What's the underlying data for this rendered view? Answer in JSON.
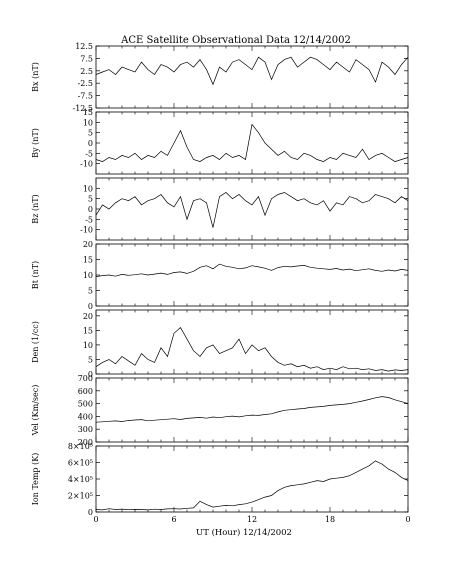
{
  "title": "ACE Satellite Observational Data   12/14/2002",
  "chart_data": [
    {
      "type": "line",
      "ylabel": "Bx (nT)",
      "ylim": [
        -12.5,
        12.5
      ],
      "yticks": [
        "12.5",
        "7.5",
        "2.5",
        "-2.5",
        "-7.5",
        "-12.5"
      ],
      "xlim": [
        0,
        24
      ],
      "series": [
        {
          "x": [
            0,
            0.5,
            1,
            1.5,
            2,
            2.5,
            3,
            3.5,
            4,
            4.5,
            5,
            5.5,
            6,
            6.5,
            7,
            7.5,
            8,
            8.5,
            9,
            9.5,
            10,
            10.5,
            11,
            11.5,
            12,
            12.5,
            13,
            13.5,
            14,
            14.5,
            15,
            15.5,
            16,
            16.5,
            17,
            17.5,
            18,
            18.5,
            19,
            19.5,
            20,
            20.5,
            21,
            21.5,
            22,
            22.5,
            23,
            23.5,
            24
          ],
          "values": [
            1,
            2,
            3,
            1,
            4,
            3,
            2,
            6,
            3,
            1,
            5,
            4,
            2,
            5,
            6,
            4,
            7,
            3,
            -3,
            4,
            2,
            6,
            7,
            5,
            3,
            8,
            6,
            -1,
            5,
            7,
            8,
            4,
            6,
            8,
            7,
            5,
            3,
            6,
            4,
            2,
            7,
            5,
            3,
            -2,
            6,
            4,
            1,
            5,
            8
          ]
        }
      ]
    },
    {
      "type": "line",
      "ylabel": "By (nT)",
      "ylim": [
        -15,
        15
      ],
      "yticks": [
        "15",
        "10",
        "5",
        "0",
        "-5",
        "-10"
      ],
      "xlim": [
        0,
        24
      ],
      "series": [
        {
          "x": [
            0,
            0.5,
            1,
            1.5,
            2,
            2.5,
            3,
            3.5,
            4,
            4.5,
            5,
            5.5,
            6,
            6.5,
            7,
            7.5,
            8,
            8.5,
            9,
            9.5,
            10,
            10.5,
            11,
            11.5,
            12,
            12.5,
            13,
            13.5,
            14,
            14.5,
            15,
            15.5,
            16,
            16.5,
            17,
            17.5,
            18,
            18.5,
            19,
            19.5,
            20,
            20.5,
            21,
            21.5,
            22,
            22.5,
            23,
            23.5,
            24
          ],
          "values": [
            -8,
            -9,
            -7,
            -8,
            -6,
            -7,
            -5,
            -8,
            -6,
            -7,
            -4,
            -6,
            0,
            6,
            -2,
            -8,
            -9,
            -7,
            -6,
            -8,
            -5,
            -7,
            -6,
            -8,
            9,
            5,
            0,
            -3,
            -6,
            -4,
            -7,
            -8,
            -5,
            -6,
            -8,
            -9,
            -7,
            -8,
            -5,
            -6,
            -7,
            -3,
            -8,
            -6,
            -5,
            -7,
            -9,
            -8,
            -7
          ]
        }
      ]
    },
    {
      "type": "line",
      "ylabel": "Bz (nT)",
      "ylim": [
        -15,
        15
      ],
      "yticks": [
        "10",
        "5",
        "0",
        "-5",
        "-10"
      ],
      "xlim": [
        0,
        24
      ],
      "series": [
        {
          "x": [
            0,
            0.5,
            1,
            1.5,
            2,
            2.5,
            3,
            3.5,
            4,
            4.5,
            5,
            5.5,
            6,
            6.5,
            7,
            7.5,
            8,
            8.5,
            9,
            9.5,
            10,
            10.5,
            11,
            11.5,
            12,
            12.5,
            13,
            13.5,
            14,
            14.5,
            15,
            15.5,
            16,
            16.5,
            17,
            17.5,
            18,
            18.5,
            19,
            19.5,
            20,
            20.5,
            21,
            21.5,
            22,
            22.5,
            23,
            23.5,
            24
          ],
          "values": [
            -3,
            2,
            0,
            3,
            5,
            4,
            6,
            2,
            4,
            5,
            7,
            3,
            1,
            6,
            -5,
            4,
            5,
            3,
            -9,
            6,
            8,
            5,
            7,
            4,
            2,
            6,
            -3,
            5,
            7,
            8,
            6,
            4,
            5,
            3,
            2,
            4,
            -1,
            3,
            2,
            6,
            5,
            3,
            4,
            7,
            6,
            5,
            3,
            6,
            4
          ]
        }
      ]
    },
    {
      "type": "line",
      "ylabel": "Bt (nT)",
      "ylim": [
        0,
        20
      ],
      "yticks": [
        "20",
        "15",
        "10",
        "5",
        "0"
      ],
      "xlim": [
        0,
        24
      ],
      "series": [
        {
          "x": [
            0,
            0.5,
            1,
            1.5,
            2,
            2.5,
            3,
            3.5,
            4,
            4.5,
            5,
            5.5,
            6,
            6.5,
            7,
            7.5,
            8,
            8.5,
            9,
            9.5,
            10,
            10.5,
            11,
            11.5,
            12,
            12.5,
            13,
            13.5,
            14,
            14.5,
            15,
            15.5,
            16,
            16.5,
            17,
            17.5,
            18,
            18.5,
            19,
            19.5,
            20,
            20.5,
            21,
            21.5,
            22,
            22.5,
            23,
            23.5,
            24
          ],
          "values": [
            9.5,
            9.8,
            10,
            9.6,
            10.2,
            9.9,
            10.1,
            10.4,
            10,
            10.3,
            10.6,
            10.2,
            10.8,
            11,
            10.5,
            11.2,
            12.5,
            13,
            12,
            13.5,
            12.8,
            12.5,
            12,
            12.3,
            13,
            12.6,
            12.2,
            11.5,
            12.4,
            12.8,
            12.6,
            12.9,
            13.1,
            12.5,
            12.2,
            12,
            11.8,
            12.1,
            11.6,
            11.9,
            11.4,
            11.7,
            12,
            11.5,
            11.2,
            11.6,
            11.3,
            11.8,
            11.5
          ]
        }
      ]
    },
    {
      "type": "line",
      "ylabel": "Den (1/cc)",
      "ylim": [
        0,
        22
      ],
      "yticks": [
        "20",
        "15",
        "10",
        "5",
        "0"
      ],
      "xlim": [
        0,
        24
      ],
      "series": [
        {
          "x": [
            0,
            0.5,
            1,
            1.5,
            2,
            2.5,
            3,
            3.5,
            4,
            4.5,
            5,
            5.5,
            6,
            6.5,
            7,
            7.5,
            8,
            8.5,
            9,
            9.5,
            10,
            10.5,
            11,
            11.5,
            12,
            12.5,
            13,
            13.5,
            14,
            14.5,
            15,
            15.5,
            16,
            16.5,
            17,
            17.5,
            18,
            18.5,
            19,
            19.5,
            20,
            20.5,
            21,
            21.5,
            22,
            22.5,
            23,
            23.5,
            24
          ],
          "values": [
            2.5,
            4,
            5,
            3.5,
            6,
            4.5,
            3,
            7,
            5,
            4,
            9,
            6,
            14,
            16,
            12,
            8,
            6,
            9,
            10,
            7,
            8,
            9,
            12,
            7,
            10,
            8,
            9,
            6,
            4,
            3,
            3.5,
            2.5,
            3,
            2,
            2.5,
            1.5,
            2,
            1.5,
            2.5,
            1.8,
            2,
            1.5,
            1.8,
            1.2,
            1.5,
            1,
            1.4,
            1.2,
            1.5
          ]
        }
      ]
    },
    {
      "type": "line",
      "ylabel": "Vel (Km/sec)",
      "ylim": [
        200,
        700
      ],
      "yticks": [
        "700",
        "600",
        "500",
        "400",
        "300",
        "200"
      ],
      "xlim": [
        0,
        24
      ],
      "series": [
        {
          "x": [
            0,
            0.5,
            1,
            1.5,
            2,
            2.5,
            3,
            3.5,
            4,
            4.5,
            5,
            5.5,
            6,
            6.5,
            7,
            7.5,
            8,
            8.5,
            9,
            9.5,
            10,
            10.5,
            11,
            11.5,
            12,
            12.5,
            13,
            13.5,
            14,
            14.5,
            15,
            15.5,
            16,
            16.5,
            17,
            17.5,
            18,
            18.5,
            19,
            19.5,
            20,
            20.5,
            21,
            21.5,
            22,
            22.5,
            23,
            23.5,
            24
          ],
          "values": [
            355,
            358,
            362,
            365,
            360,
            368,
            372,
            375,
            366,
            370,
            374,
            378,
            382,
            376,
            384,
            388,
            392,
            386,
            395,
            390,
            398,
            402,
            396,
            405,
            410,
            408,
            415,
            420,
            435,
            448,
            452,
            458,
            462,
            470,
            474,
            478,
            486,
            490,
            494,
            500,
            510,
            520,
            532,
            545,
            555,
            548,
            530,
            515,
            500
          ]
        }
      ]
    },
    {
      "type": "line",
      "ylabel": "Ion Temp (K)",
      "ylim": [
        0,
        800000
      ],
      "yticks": [
        "8×10⁵",
        "6×10⁵",
        "4×10⁵",
        "2×10⁵",
        "0"
      ],
      "xlim": [
        0,
        24
      ],
      "series": [
        {
          "x": [
            0,
            0.5,
            1,
            1.5,
            2,
            2.5,
            3,
            3.5,
            4,
            4.5,
            5,
            5.5,
            6,
            6.5,
            7,
            7.5,
            8,
            8.5,
            9,
            9.5,
            10,
            10.5,
            11,
            11.5,
            12,
            12.5,
            13,
            13.5,
            14,
            14.5,
            15,
            15.5,
            16,
            16.5,
            17,
            17.5,
            18,
            18.5,
            19,
            19.5,
            20,
            20.5,
            21,
            21.5,
            22,
            22.5,
            23,
            23.5,
            24
          ],
          "values": [
            30000,
            25000,
            40000,
            30000,
            35000,
            28000,
            32000,
            30000,
            26000,
            34000,
            30000,
            38000,
            40000,
            36000,
            45000,
            50000,
            130000,
            90000,
            60000,
            70000,
            80000,
            75000,
            90000,
            100000,
            120000,
            150000,
            180000,
            200000,
            260000,
            300000,
            320000,
            330000,
            340000,
            360000,
            380000,
            370000,
            400000,
            410000,
            420000,
            440000,
            480000,
            520000,
            560000,
            620000,
            580000,
            520000,
            480000,
            420000,
            380000
          ]
        }
      ]
    }
  ],
  "xaxis": {
    "label": "UT (Hour)  12/14/2002",
    "ticks": [
      "0",
      "6",
      "12",
      "18",
      "0"
    ],
    "tick_values": [
      0,
      6,
      12,
      18,
      24
    ]
  }
}
